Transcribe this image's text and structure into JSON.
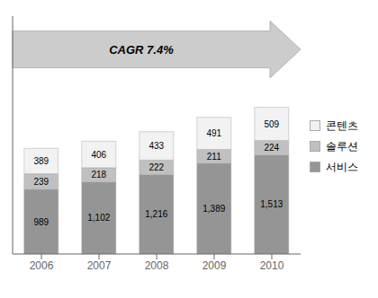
{
  "chart_data": {
    "type": "bar",
    "stacked": true,
    "categories": [
      "2006",
      "2007",
      "2008",
      "2009",
      "2010"
    ],
    "series": [
      {
        "name": "서비스",
        "color": "#959595",
        "values": [
          989,
          1102,
          1216,
          1389,
          1513
        ],
        "value_labels": [
          "989",
          "1,102",
          "1,216",
          "1,389",
          "1,513"
        ]
      },
      {
        "name": "솔루션",
        "color": "#c0c0c0",
        "values": [
          239,
          218,
          222,
          211,
          224
        ]
      },
      {
        "name": "콘텐츠",
        "color": "#f2f2f2",
        "values": [
          389,
          406,
          433,
          491,
          509
        ]
      }
    ],
    "ylim": [
      0,
      3638.52
    ],
    "tick_labels": "x",
    "data_labels": true,
    "legend": "right",
    "grid": false,
    "annotations": [
      "CAGR 7.4%"
    ]
  }
}
